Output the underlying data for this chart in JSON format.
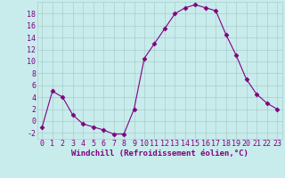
{
  "x": [
    0,
    1,
    2,
    3,
    4,
    5,
    6,
    7,
    8,
    9,
    10,
    11,
    12,
    13,
    14,
    15,
    16,
    17,
    18,
    19,
    20,
    21,
    22,
    23
  ],
  "y": [
    -1,
    5,
    4,
    1,
    -0.5,
    -1,
    -1.5,
    -2.2,
    -2.2,
    2,
    10.5,
    13,
    15.5,
    18,
    19,
    19.5,
    19,
    18.5,
    14.5,
    11,
    7,
    4.5,
    3,
    2
  ],
  "line_color": "#800080",
  "marker": "D",
  "marker_size": 2.5,
  "bg_color": "#c8ecec",
  "grid_color": "#aacccc",
  "ylabel_ticks": [
    -2,
    0,
    2,
    4,
    6,
    8,
    10,
    12,
    14,
    16,
    18
  ],
  "xlabel": "Windchill (Refroidissement éolien,°C)",
  "xlim": [
    -0.5,
    23.5
  ],
  "ylim": [
    -3,
    20
  ],
  "tick_fontsize": 6,
  "xlabel_fontsize": 6.5
}
